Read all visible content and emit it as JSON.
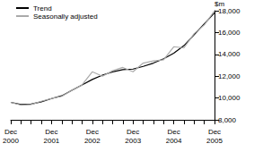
{
  "chart_data": {
    "type": "line",
    "y_label": "$m",
    "categories": [
      "Dec\n2000",
      null,
      null,
      null,
      "Dec\n2001",
      null,
      null,
      null,
      "Dec\n2002",
      null,
      null,
      null,
      "Dec\n2003",
      null,
      null,
      null,
      "Dec\n2004",
      null,
      null,
      null,
      "Dec\n2005"
    ],
    "series": [
      {
        "name": "Trend",
        "color": "#000000",
        "values": [
          9600,
          9400,
          9450,
          9650,
          9950,
          10200,
          10700,
          11200,
          11700,
          12100,
          12400,
          12600,
          12650,
          12900,
          13200,
          13600,
          14100,
          14800,
          15800,
          16800,
          17800
        ]
      },
      {
        "name": "Seasonally adjusted",
        "color": "#aaaaaa",
        "values": [
          9600,
          9350,
          9400,
          9700,
          9950,
          10150,
          10700,
          11200,
          12400,
          12000,
          12500,
          12800,
          12400,
          13200,
          13400,
          13500,
          14700,
          14600,
          15900,
          16700,
          18000
        ]
      }
    ],
    "ylim": [
      8000,
      18000
    ],
    "yticks": [
      8000,
      10000,
      12000,
      14000,
      16000,
      18000
    ],
    "grid": false,
    "legend": "top-left"
  }
}
